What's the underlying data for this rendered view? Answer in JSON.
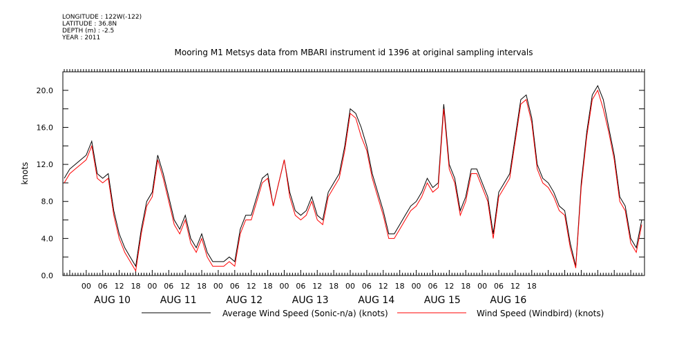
{
  "header": {
    "longitude": "LONGITUDE : 122W(-122)",
    "latitude": "LATITUDE : 36.8N",
    "depth": "DEPTH (m) : -2.5",
    "year": "YEAR : 2011"
  },
  "chart_data": {
    "type": "line",
    "title": "Mooring M1 Metsys data from MBARI instrument id 1396 at original sampling intervals",
    "ylabel": "knots",
    "xlabel": "",
    "ylim": [
      0,
      22
    ],
    "xlim_hours": [
      -8.5,
      203
    ],
    "yticks": [
      0,
      4,
      8,
      12,
      16,
      20
    ],
    "ytick_labels": [
      "0.0",
      "4.0",
      "8.0",
      "12.0",
      "16.0",
      "20.0"
    ],
    "hour_tick_labels": [
      "00",
      "06",
      "12",
      "18",
      "00",
      "06",
      "12",
      "18",
      "00",
      "06",
      "12",
      "18",
      "00",
      "06",
      "12",
      "18",
      "00",
      "06",
      "12",
      "18",
      "00",
      "06",
      "12",
      "18",
      "00",
      "06",
      "12",
      "18"
    ],
    "day_labels": [
      "AUG 10",
      "AUG 11",
      "AUG 12",
      "AUG 13",
      "AUG 14",
      "AUG 15",
      "AUG 16"
    ],
    "grid": false,
    "legend": "bottom",
    "series": [
      {
        "name": "Average Wind Speed (Sonic-n/a) (knots)",
        "color": "#000000",
        "x": [
          -8,
          -6,
          -4,
          -2,
          0,
          2,
          4,
          6,
          8,
          10,
          12,
          14,
          16,
          18,
          20,
          22,
          24,
          26,
          28,
          30,
          32,
          34,
          36,
          38,
          40,
          42,
          44,
          46,
          48,
          50,
          52,
          54,
          56,
          58,
          60,
          62,
          64,
          66,
          68,
          70,
          72,
          74,
          76,
          78,
          80,
          82,
          84,
          86,
          88,
          90,
          92,
          94,
          96,
          98,
          100,
          102,
          104,
          106,
          108,
          110,
          112,
          114,
          116,
          118,
          120,
          122,
          124,
          126,
          128,
          130,
          132,
          134,
          136,
          138,
          140,
          142,
          144,
          146,
          148,
          150,
          152,
          154,
          156,
          158,
          160,
          162,
          164,
          166,
          168,
          170,
          172,
          174,
          176,
          178,
          180,
          182,
          184,
          186,
          188,
          190,
          192,
          194,
          196,
          198,
          200,
          202
        ],
        "y": [
          10.5,
          11.5,
          12.0,
          12.5,
          13.0,
          14.5,
          11.0,
          10.5,
          11.0,
          7.0,
          4.5,
          3.0,
          2.0,
          1.0,
          5.0,
          8.0,
          9.0,
          13.0,
          11.0,
          8.5,
          6.0,
          5.0,
          6.5,
          4.0,
          3.0,
          4.5,
          2.5,
          1.5,
          1.5,
          1.5,
          2.0,
          1.5,
          5.0,
          6.5,
          6.5,
          8.5,
          10.5,
          11.0,
          7.5,
          10.0,
          12.5,
          9.0,
          7.0,
          6.5,
          7.0,
          8.5,
          6.5,
          6.0,
          9.0,
          10.0,
          11.0,
          14.0,
          18.0,
          17.5,
          16.0,
          14.0,
          11.0,
          9.0,
          7.0,
          4.5,
          4.5,
          5.5,
          6.5,
          7.5,
          8.0,
          9.0,
          10.5,
          9.5,
          10.0,
          18.5,
          12.0,
          10.5,
          7.0,
          8.5,
          11.5,
          11.5,
          10.0,
          8.5,
          4.5,
          9.0,
          10.0,
          11.0,
          15.0,
          19.0,
          19.5,
          17.0,
          12.0,
          10.5,
          10.0,
          9.0,
          7.5,
          7.0,
          3.5,
          1.0,
          10.0,
          15.5,
          19.5,
          20.5,
          19.0,
          16.0,
          13.0,
          8.5,
          7.5,
          4.0,
          3.0,
          6.0
        ]
      },
      {
        "name": "Wind Speed (Windbird) (knots)",
        "color": "#ff0000",
        "x": [
          -8,
          -6,
          -4,
          -2,
          0,
          2,
          4,
          6,
          8,
          10,
          12,
          14,
          16,
          18,
          20,
          22,
          24,
          26,
          28,
          30,
          32,
          34,
          36,
          38,
          40,
          42,
          44,
          46,
          48,
          50,
          52,
          54,
          56,
          58,
          60,
          62,
          64,
          66,
          68,
          70,
          72,
          74,
          76,
          78,
          80,
          82,
          84,
          86,
          88,
          90,
          92,
          94,
          96,
          98,
          100,
          102,
          104,
          106,
          108,
          110,
          112,
          114,
          116,
          118,
          120,
          122,
          124,
          126,
          128,
          130,
          132,
          134,
          136,
          138,
          140,
          142,
          144,
          146,
          148,
          150,
          152,
          154,
          156,
          158,
          160,
          162,
          164,
          166,
          168,
          170,
          172,
          174,
          176,
          178,
          180,
          182,
          184,
          186,
          188,
          190,
          192,
          194,
          196,
          198,
          200,
          202
        ],
        "y": [
          10.0,
          11.0,
          11.5,
          12.0,
          12.5,
          14.0,
          10.5,
          10.0,
          10.5,
          6.5,
          4.0,
          2.5,
          1.5,
          0.5,
          4.5,
          7.5,
          8.5,
          12.5,
          10.5,
          8.0,
          5.5,
          4.5,
          6.0,
          3.5,
          2.5,
          4.0,
          2.0,
          1.0,
          1.0,
          1.0,
          1.5,
          1.0,
          4.5,
          6.0,
          6.0,
          8.0,
          10.0,
          10.5,
          7.5,
          10.0,
          12.5,
          8.5,
          6.5,
          6.0,
          6.5,
          8.0,
          6.0,
          5.5,
          8.5,
          9.5,
          10.5,
          13.5,
          17.5,
          17.0,
          15.0,
          13.5,
          10.5,
          8.5,
          6.5,
          4.0,
          4.0,
          5.0,
          6.0,
          7.0,
          7.5,
          8.5,
          10.0,
          9.0,
          9.5,
          18.0,
          11.5,
          10.0,
          6.5,
          8.0,
          11.0,
          11.0,
          9.5,
          8.0,
          4.0,
          8.5,
          9.5,
          10.5,
          14.5,
          18.5,
          19.0,
          16.5,
          11.5,
          10.0,
          9.5,
          8.5,
          7.0,
          6.5,
          3.0,
          0.8,
          9.5,
          15.0,
          19.0,
          20.0,
          18.0,
          15.5,
          12.5,
          8.0,
          7.0,
          3.5,
          2.5,
          5.5
        ]
      }
    ]
  }
}
